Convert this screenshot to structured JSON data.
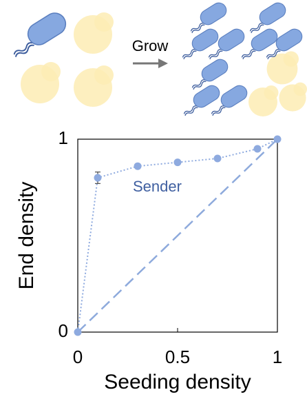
{
  "schematic": {
    "label": "Grow"
  },
  "chart_data": {
    "type": "line",
    "xlabel": "Seeding density",
    "ylabel": "End density",
    "x": [
      0,
      0.1,
      0.3,
      0.5,
      0.7,
      0.9,
      1
    ],
    "series": [
      {
        "name": "Sender",
        "color": "#8eaadf",
        "values": [
          0,
          0.8,
          0.86,
          0.88,
          0.9,
          0.95,
          1
        ],
        "errors": [
          null,
          0.03,
          null,
          null,
          null,
          null,
          null
        ]
      }
    ],
    "reference_line": {
      "x": [
        0,
        1
      ],
      "y": [
        0,
        1
      ],
      "color": "#8eaadc"
    },
    "xlim": [
      0,
      1
    ],
    "ylim": [
      0,
      1
    ],
    "xticks": [
      0,
      0.5,
      1
    ],
    "yticks": [
      0,
      1
    ]
  }
}
